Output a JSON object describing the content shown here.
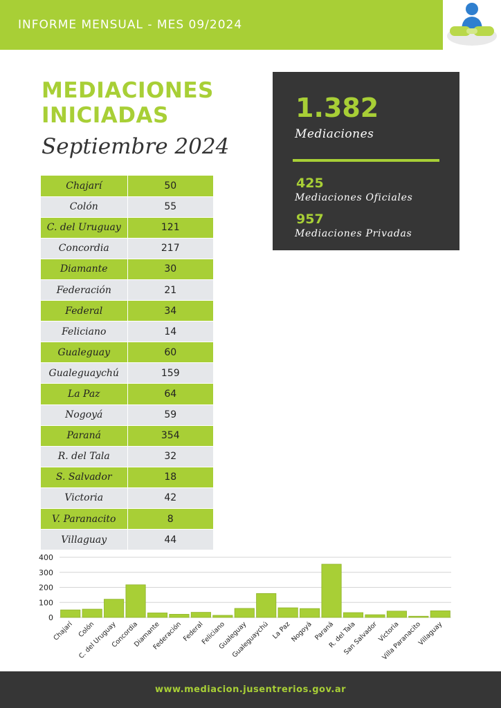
{
  "header": {
    "title": "INFORME MENSUAL - MES 09/2024"
  },
  "heading": {
    "line1": "MEDIACIONES",
    "line2": "INICIADAS",
    "subtitle": "Septiembre 2024"
  },
  "summary": {
    "total_value": "1.382",
    "total_label": "Mediaciones",
    "oficiales_value": "425",
    "oficiales_label": "Mediaciones Oficiales",
    "privadas_value": "957",
    "privadas_label": "Mediaciones Privadas"
  },
  "table": {
    "rows": [
      {
        "name": "Chajarí",
        "value": "50"
      },
      {
        "name": "Colón",
        "value": "55"
      },
      {
        "name": "C. del Uruguay",
        "value": "121"
      },
      {
        "name": "Concordia",
        "value": "217"
      },
      {
        "name": "Diamante",
        "value": "30"
      },
      {
        "name": "Federación",
        "value": "21"
      },
      {
        "name": "Federal",
        "value": "34"
      },
      {
        "name": "Feliciano",
        "value": "14"
      },
      {
        "name": "Gualeguay",
        "value": "60"
      },
      {
        "name": "Gualeguaychú",
        "value": "159"
      },
      {
        "name": "La Paz",
        "value": "64"
      },
      {
        "name": "Nogoyá",
        "value": "59"
      },
      {
        "name": "Paraná",
        "value": "354"
      },
      {
        "name": "R. del Tala",
        "value": "32"
      },
      {
        "name": "S. Salvador",
        "value": "18"
      },
      {
        "name": "Victoria",
        "value": "42"
      },
      {
        "name": "V. Paranacito",
        "value": "8"
      },
      {
        "name": "Villaguay",
        "value": "44"
      }
    ]
  },
  "chart_data": {
    "type": "bar",
    "categories": [
      "Chajarí",
      "Colón",
      "C. del Uruguay",
      "Concordia",
      "Diamante",
      "Federación",
      "Federal",
      "Feliciano",
      "Gualeguay",
      "Gualeguaychú",
      "La Paz",
      "Nogoyá",
      "Paraná",
      "R. del Tala",
      "San Salvador",
      "Victoria",
      "Villa Paranacito",
      "Villaguay"
    ],
    "values": [
      50,
      55,
      121,
      217,
      30,
      21,
      34,
      14,
      60,
      159,
      64,
      59,
      354,
      32,
      18,
      42,
      8,
      44
    ],
    "yticks": [
      0,
      100,
      200,
      300,
      400
    ],
    "ylim": [
      0,
      400
    ],
    "grid": true,
    "bar_color": "#a8cf36",
    "bar_stroke": "#8fb32a"
  },
  "footer": {
    "url": "www.mediacion.jusentrerios.gov.ar"
  },
  "colors": {
    "accent": "#a8cf36",
    "dark": "#363636",
    "row_alt": "#e5e7ea"
  },
  "icons": {
    "logo": "mediation-logo-icon"
  }
}
